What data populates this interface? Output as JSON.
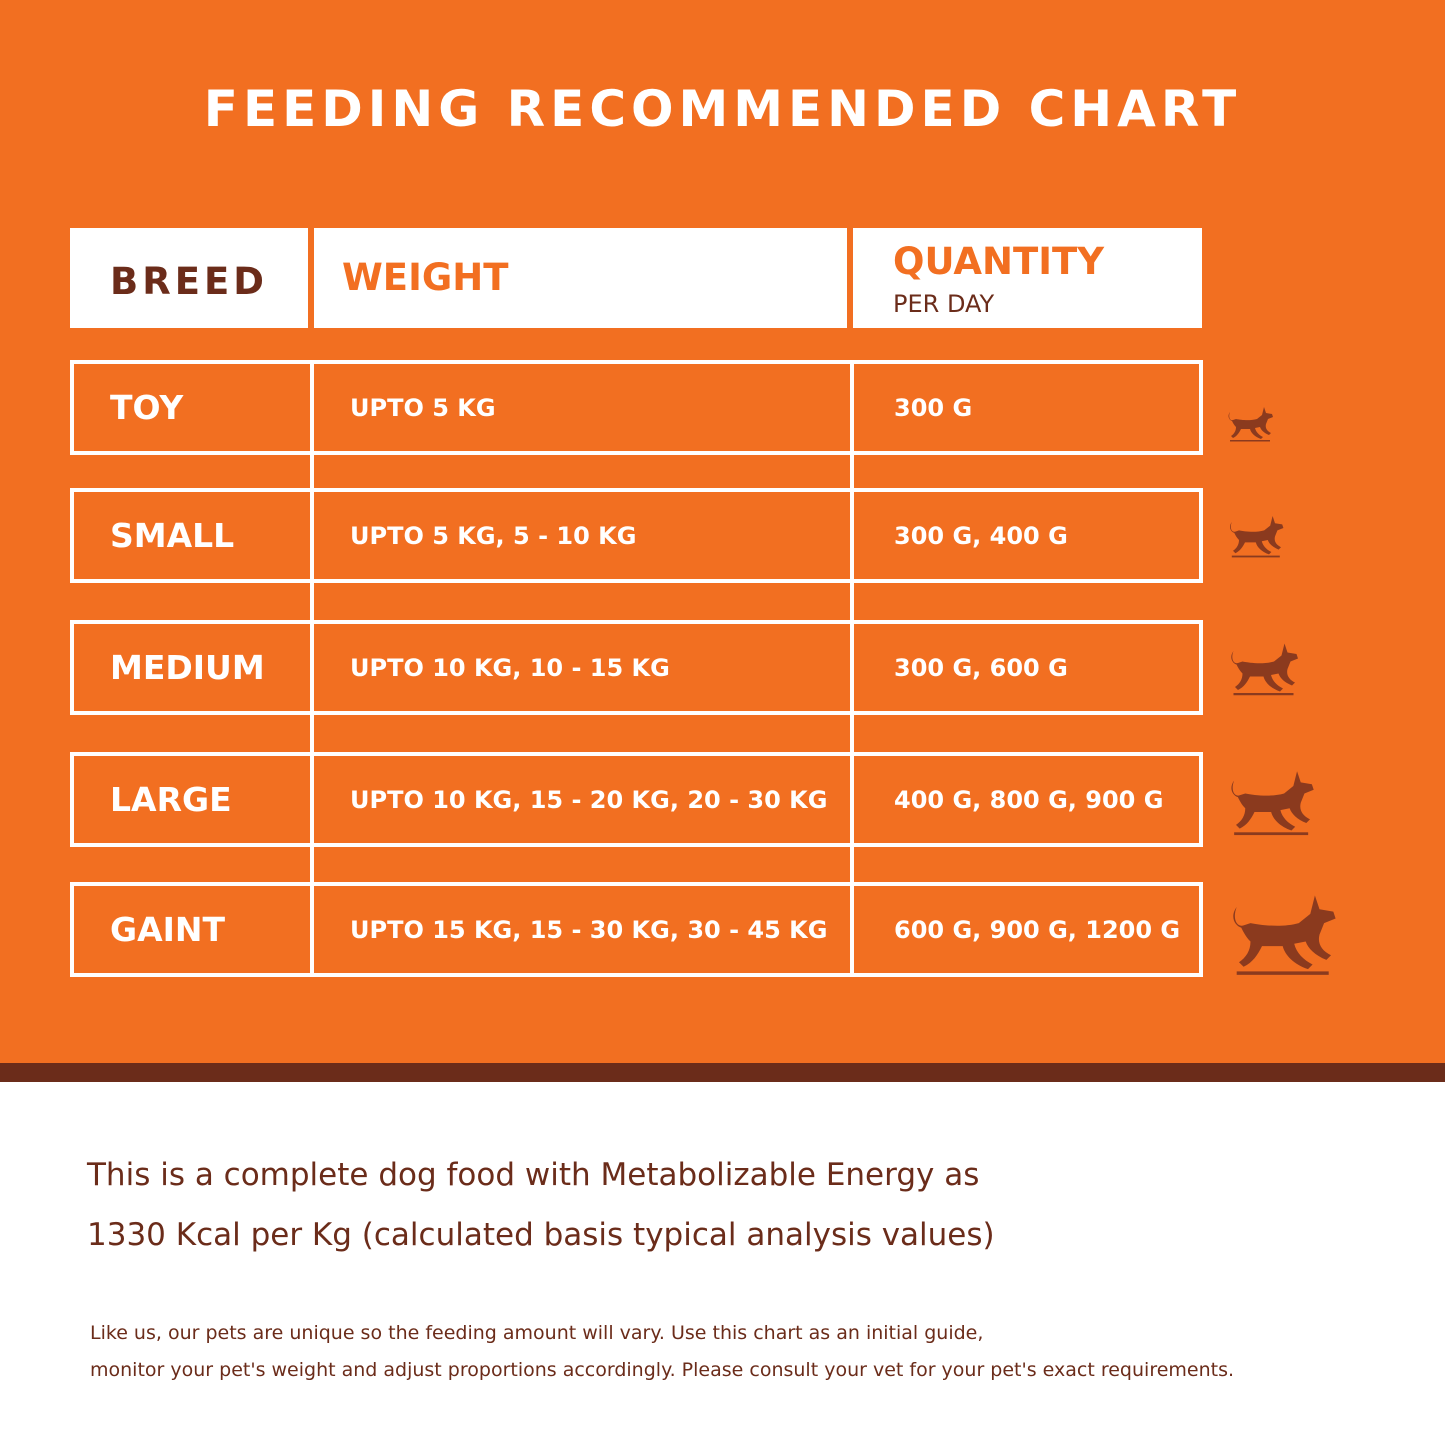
{
  "title": "FEEDING RECOMMENDED CHART",
  "header": {
    "breed": "BREED",
    "weight": "WEIGHT",
    "quantity": "QUANTITY",
    "quantity_sub": "PER DAY"
  },
  "rows": [
    {
      "breed": "TOY",
      "weight": "UPTO 5 KG",
      "quantity": "300 G",
      "icon": "dog-icon"
    },
    {
      "breed": "SMALL",
      "weight": "UPTO 5 KG, 5 - 10 KG",
      "quantity": "300 G, 400 G",
      "icon": "dog-icon"
    },
    {
      "breed": "MEDIUM",
      "weight": "UPTO 10 KG, 10 - 15 KG",
      "quantity": "300 G, 600 G",
      "icon": "dog-icon"
    },
    {
      "breed": "LARGE",
      "weight": "UPTO 10 KG, 15 - 20 KG, 20 - 30 KG",
      "quantity": "400 G, 800 G, 900 G",
      "icon": "dog-icon"
    },
    {
      "breed": "GAINT",
      "weight": "UPTO 15 KG, 15 - 30 KG, 30 - 45 KG",
      "quantity": "600 G, 900 G, 1200 G",
      "icon": "dog-icon"
    }
  ],
  "energy_note_line1": "This is a complete dog food with Metabolizable Energy as",
  "energy_note_line2": "1330 Kcal per Kg (calculated basis typical analysis values)",
  "disclaimer_line1": "Like us, our pets are unique so the feeding amount will vary. Use this chart as an initial guide,",
  "disclaimer_line2": "monitor your pet's weight and adjust proportions accordingly. Please consult your vet for your pet's exact requirements.",
  "colors": {
    "orange": "#F26F21",
    "brown": "#6B2C1A",
    "white": "#FFFFFF"
  }
}
